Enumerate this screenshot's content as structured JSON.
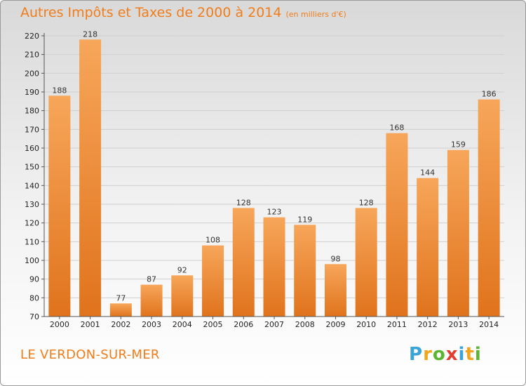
{
  "header": {
    "title": "Autres Impôts et Taxes de 2000 à 2014",
    "subtitle": "(en milliers d'€)"
  },
  "footer": {
    "commune": "LE VERDON-SUR-MER",
    "logo_letters": [
      "P",
      "r",
      "o",
      "x",
      "i",
      "t",
      "i"
    ],
    "logo_colors": [
      "#3aa3d8",
      "#f2a51a",
      "#5cb531",
      "#e53a2f",
      "#3aa3d8",
      "#f2a51a",
      "#5cb531"
    ]
  },
  "chart_data": {
    "type": "bar",
    "categories": [
      "2000",
      "2001",
      "2002",
      "2003",
      "2004",
      "2005",
      "2006",
      "2007",
      "2008",
      "2009",
      "2010",
      "2011",
      "2012",
      "2013",
      "2014"
    ],
    "values": [
      188,
      218,
      77,
      87,
      92,
      108,
      128,
      123,
      119,
      98,
      128,
      168,
      144,
      159,
      186
    ],
    "title": "Autres Impôts et Taxes de 2000 à 2014",
    "xlabel": "",
    "ylabel": "",
    "ylim": [
      70,
      220
    ],
    "yticks": [
      70,
      80,
      90,
      100,
      110,
      120,
      130,
      140,
      150,
      160,
      170,
      180,
      190,
      200,
      210,
      220
    ],
    "grid": true,
    "bar_color_light": "#f7a65a",
    "bar_color_dark": "#e0731c"
  }
}
